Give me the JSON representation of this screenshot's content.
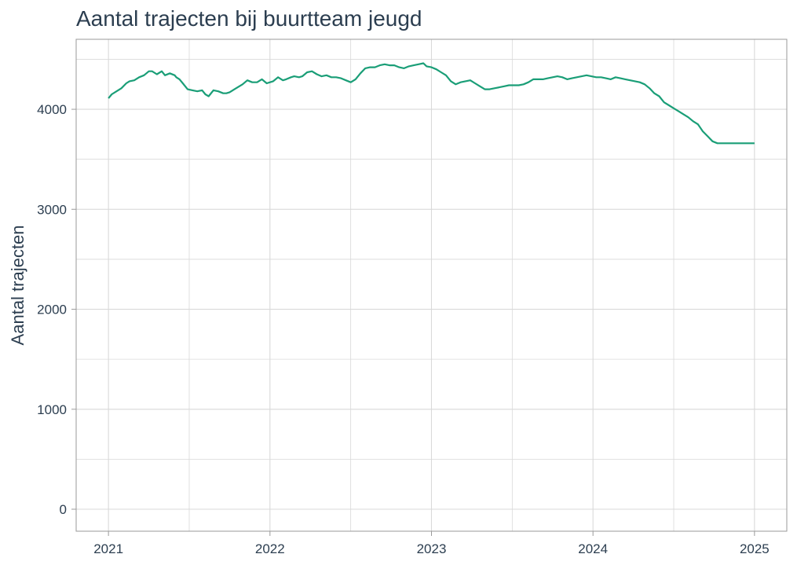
{
  "chart_data": {
    "type": "line",
    "title": "Aantal trajecten bij buurtteam jeugd",
    "xlabel": "",
    "ylabel": "Aantal trajecten",
    "xlim": [
      2020.8,
      2025.2
    ],
    "ylim": [
      -220,
      4700
    ],
    "x_ticks": [
      2021,
      2022,
      2023,
      2024,
      2025
    ],
    "x_tick_labels": [
      "2021",
      "2022",
      "2023",
      "2024",
      "2025"
    ],
    "y_ticks": [
      0,
      1000,
      2000,
      3000,
      4000
    ],
    "y_tick_labels": [
      "0",
      "1000",
      "2000",
      "3000",
      "4000"
    ],
    "grid": true,
    "colors": {
      "line": "#1a9e77",
      "grid": "#d9d9d9",
      "border": "#9a9a9a",
      "text": "#2c3e50"
    },
    "series": [
      {
        "x": [
          2021.0,
          2021.02,
          2021.05,
          2021.08,
          2021.11,
          2021.13,
          2021.16,
          2021.19,
          2021.22,
          2021.25,
          2021.27,
          2021.3,
          2021.33,
          2021.35,
          2021.38,
          2021.41,
          2021.42,
          2021.44,
          2021.46,
          2021.49,
          2021.52,
          2021.55,
          2021.58,
          2021.6,
          2021.62,
          2021.65,
          2021.68,
          2021.71,
          2021.73,
          2021.75,
          2021.78,
          2021.8,
          2021.83,
          2021.86,
          2021.89,
          2021.92,
          2021.95,
          2021.98,
          2022.0,
          2022.02,
          2022.05,
          2022.08,
          2022.1,
          2022.13,
          2022.15,
          2022.18,
          2022.2,
          2022.23,
          2022.26,
          2022.29,
          2022.32,
          2022.35,
          2022.38,
          2022.41,
          2022.44,
          2022.47,
          2022.5,
          2022.53,
          2022.56,
          2022.59,
          2022.62,
          2022.65,
          2022.68,
          2022.71,
          2022.74,
          2022.77,
          2022.8,
          2022.83,
          2022.86,
          2022.89,
          2022.92,
          2022.95,
          2022.97,
          2023.0,
          2023.03,
          2023.06,
          2023.09,
          2023.12,
          2023.15,
          2023.18,
          2023.21,
          2023.24,
          2023.27,
          2023.3,
          2023.33,
          2023.36,
          2023.39,
          2023.42,
          2023.45,
          2023.48,
          2023.51,
          2023.54,
          2023.57,
          2023.6,
          2023.63,
          2023.66,
          2023.69,
          2023.72,
          2023.75,
          2023.78,
          2023.81,
          2023.84,
          2023.87,
          2023.9,
          2023.93,
          2023.96,
          2023.99,
          2024.02,
          2024.05,
          2024.08,
          2024.11,
          2024.14,
          2024.17,
          2024.2,
          2024.23,
          2024.26,
          2024.29,
          2024.32,
          2024.35,
          2024.38,
          2024.41,
          2024.44,
          2024.47,
          2024.5,
          2024.53,
          2024.56,
          2024.59,
          2024.62,
          2024.65,
          2024.68,
          2024.71,
          2024.74,
          2024.77,
          2024.8,
          2024.83,
          2024.86,
          2024.89,
          2024.92,
          2024.95,
          2024.98,
          2025.0
        ],
        "y": [
          4110,
          4150,
          4180,
          4210,
          4260,
          4280,
          4290,
          4320,
          4340,
          4380,
          4380,
          4350,
          4380,
          4340,
          4360,
          4340,
          4320,
          4300,
          4260,
          4200,
          4190,
          4180,
          4190,
          4150,
          4130,
          4190,
          4180,
          4160,
          4160,
          4170,
          4200,
          4220,
          4250,
          4290,
          4270,
          4270,
          4300,
          4260,
          4270,
          4280,
          4320,
          4290,
          4300,
          4320,
          4330,
          4320,
          4330,
          4370,
          4380,
          4350,
          4330,
          4340,
          4320,
          4320,
          4310,
          4290,
          4270,
          4300,
          4360,
          4410,
          4420,
          4420,
          4440,
          4450,
          4440,
          4440,
          4420,
          4410,
          4430,
          4440,
          4450,
          4460,
          4430,
          4420,
          4400,
          4370,
          4340,
          4280,
          4250,
          4270,
          4280,
          4290,
          4260,
          4230,
          4200,
          4200,
          4210,
          4220,
          4230,
          4240,
          4240,
          4240,
          4250,
          4270,
          4300,
          4300,
          4300,
          4310,
          4320,
          4330,
          4320,
          4300,
          4310,
          4320,
          4330,
          4340,
          4330,
          4320,
          4320,
          4310,
          4300,
          4320,
          4310,
          4300,
          4290,
          4280,
          4270,
          4250,
          4210,
          4160,
          4130,
          4070,
          4040,
          4010,
          3980,
          3950,
          3920,
          3880,
          3850,
          3780,
          3730,
          3680,
          3660,
          3660,
          3660,
          3660,
          3660,
          3660,
          3660,
          3660,
          3660
        ]
      }
    ]
  }
}
